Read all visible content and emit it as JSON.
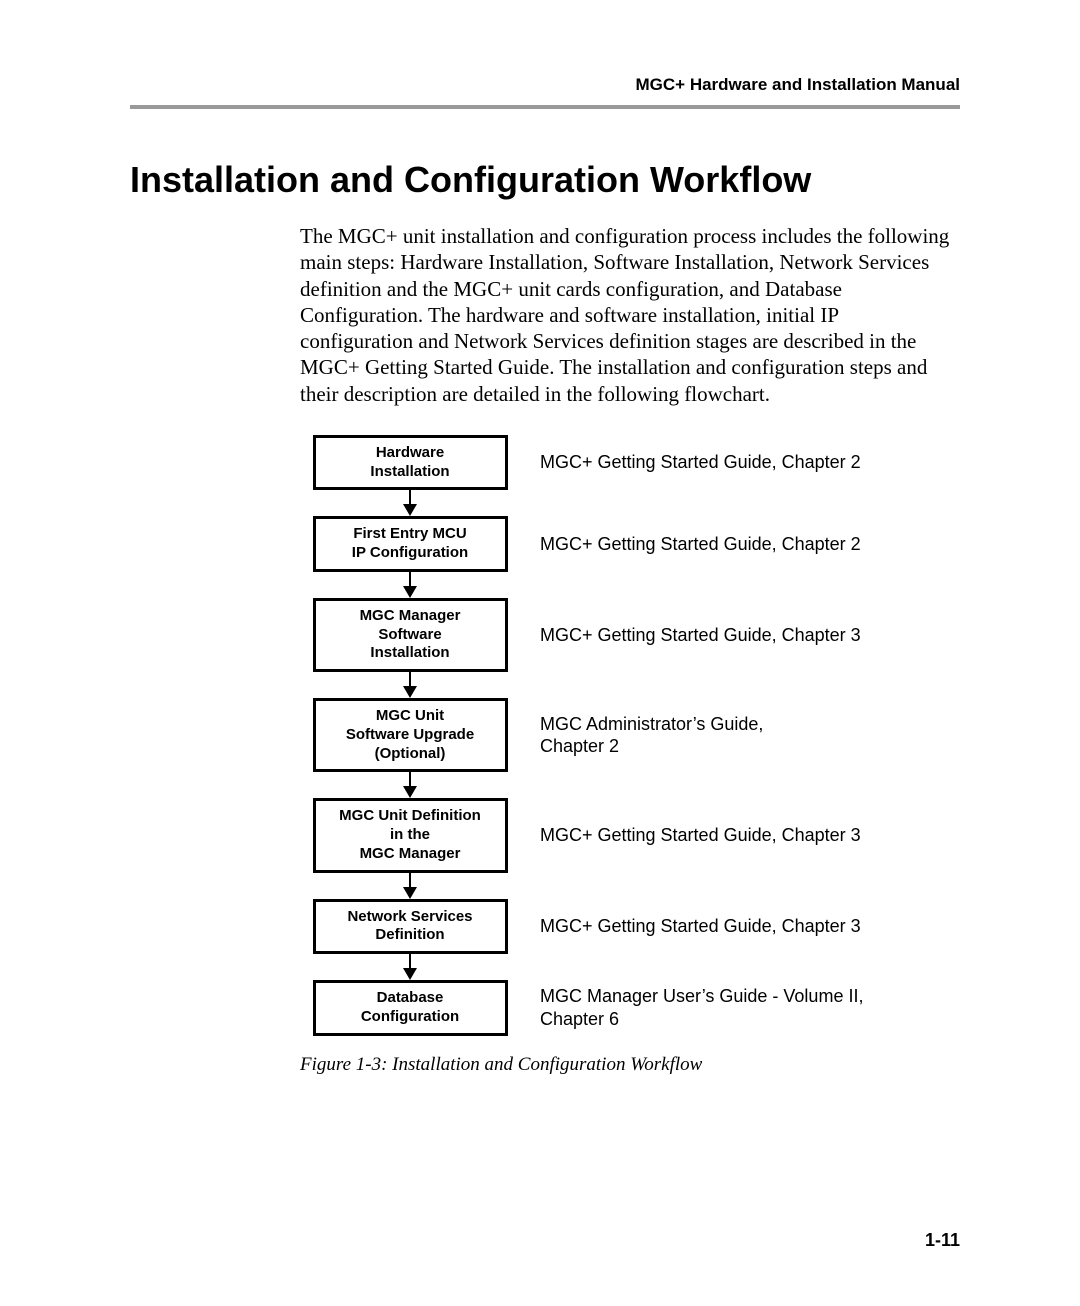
{
  "header": {
    "running_head": "MGC+ Hardware and Installation Manual"
  },
  "title": "Installation and Configuration Workflow",
  "body": "The MGC+ unit installation and configuration process includes the following main steps: Hardware Installation, Software Installation, Network Services definition and the MGC+ unit cards configuration, and Database Configuration. The hardware and software installation, initial IP configuration and Network Services definition stages are described in the MGC+ Getting Started Guide. The installation and configuration steps and their description are detailed in the following flowchart.",
  "flowchart": {
    "type": "flowchart",
    "box_border_color": "#000000",
    "box_border_width": 3,
    "box_font_family": "Arial",
    "box_font_weight": 700,
    "box_fontsize": 15,
    "annot_font_family": "Arial",
    "annot_fontsize": 18,
    "arrow_color": "#000000",
    "steps": [
      {
        "label": "Hardware\nInstallation",
        "annotation": "MGC+ Getting Started Guide, Chapter 2"
      },
      {
        "label": "First Entry MCU\nIP Configuration",
        "annotation": "MGC+ Getting Started Guide, Chapter 2"
      },
      {
        "label": "MGC Manager\nSoftware\nInstallation",
        "annotation": "MGC+ Getting Started Guide, Chapter 3"
      },
      {
        "label": "MGC Unit\nSoftware Upgrade\n(Optional)",
        "annotation": "MGC Administrator’s Guide,\nChapter 2"
      },
      {
        "label": "MGC Unit Definition\nin the\nMGC Manager",
        "annotation": "MGC+ Getting Started Guide, Chapter 3"
      },
      {
        "label": "Network Services\nDefinition",
        "annotation": "MGC+ Getting Started Guide, Chapter 3"
      },
      {
        "label": "Database\nConfiguration",
        "annotation": "MGC Manager User’s Guide - Volume II,\nChapter 6"
      }
    ]
  },
  "caption": "Figure 1-3: Installation and Configuration Workflow",
  "page_number": "1-11",
  "colors": {
    "rule": "#999999",
    "text": "#000000",
    "background": "#ffffff"
  },
  "typography": {
    "title_fontsize": 36,
    "body_fontsize": 21,
    "running_head_fontsize": 17,
    "caption_fontsize": 19,
    "page_num_fontsize": 18
  }
}
